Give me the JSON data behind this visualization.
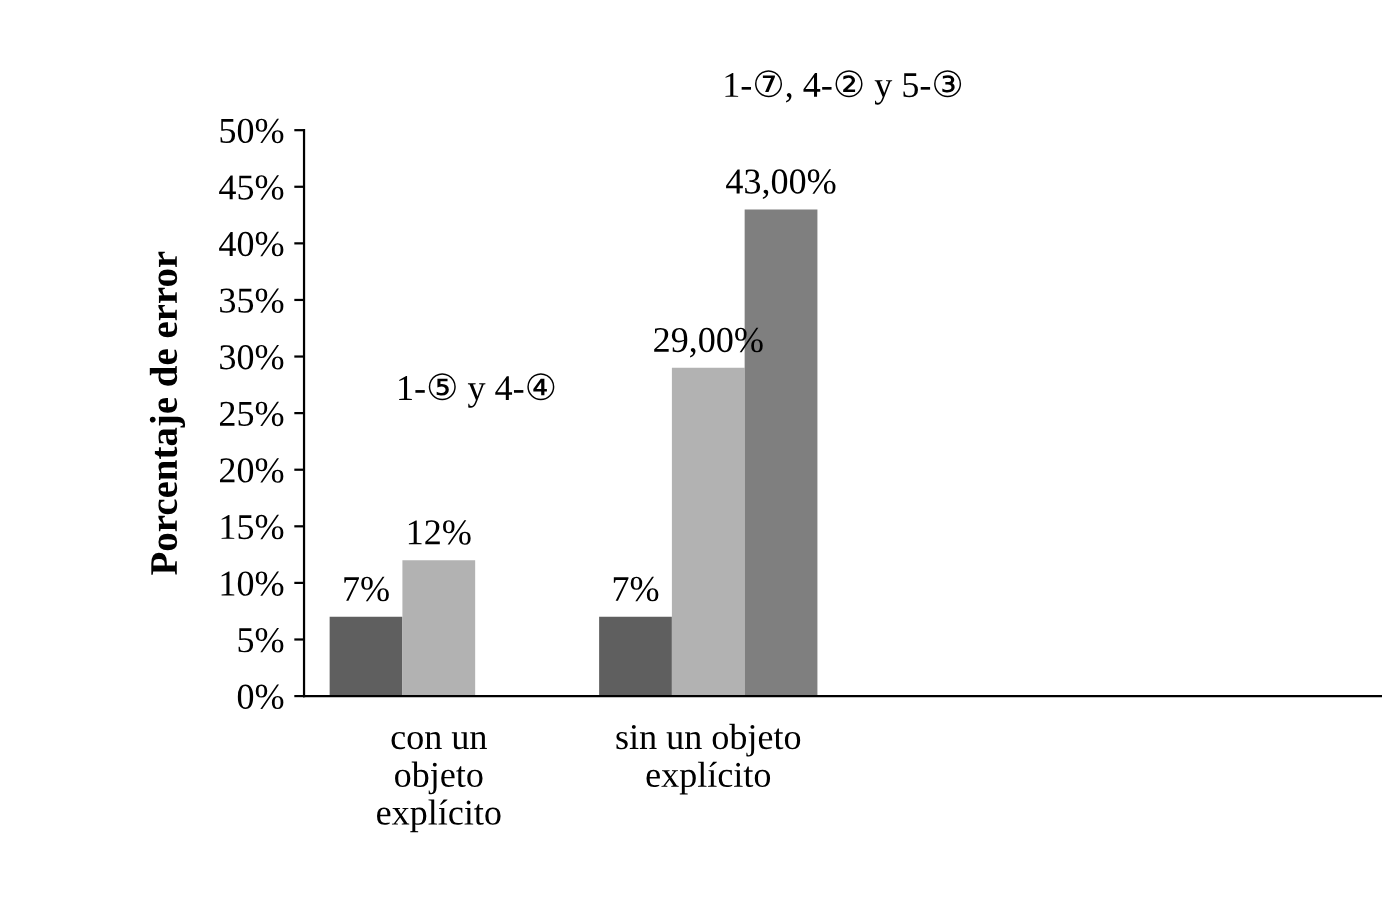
{
  "chart_data": {
    "type": "bar",
    "title": "1-⑦, 4-② y 5-③",
    "ylabel": "Porcentaje de error",
    "categories": [
      "con un\nobjeto\nexplícito",
      "sin un objeto\nexplícito",
      null,
      null
    ],
    "series": [
      {
        "color": "#5f5f5f",
        "values": [
          7,
          7,
          null,
          null
        ],
        "value_labels": [
          "7%",
          "7%",
          null,
          null
        ]
      },
      {
        "color": "#b2b2b2",
        "values": [
          12,
          29,
          null,
          null
        ],
        "value_labels": [
          "12%",
          "29,00%",
          null,
          null
        ]
      },
      {
        "color": "#7f7f7f",
        "values": [
          null,
          43,
          null,
          null
        ],
        "value_labels": [
          null,
          "43,00%",
          null,
          null
        ]
      }
    ],
    "annotations": [
      "1-⑤ y 4-④"
    ],
    "ylim": [
      0,
      50
    ],
    "yticks": [
      {
        "value": 0,
        "label": "0%"
      },
      {
        "value": 5,
        "label": "5%"
      },
      {
        "value": 10,
        "label": "10%"
      },
      {
        "value": 15,
        "label": "15%"
      },
      {
        "value": 20,
        "label": "20%"
      },
      {
        "value": 25,
        "label": "25%"
      },
      {
        "value": 30,
        "label": "30%"
      },
      {
        "value": 35,
        "label": "35%"
      },
      {
        "value": 40,
        "label": "40%"
      },
      {
        "value": 45,
        "label": "45%"
      },
      {
        "value": 50,
        "label": "50%"
      }
    ],
    "grid": false,
    "legend": false
  }
}
